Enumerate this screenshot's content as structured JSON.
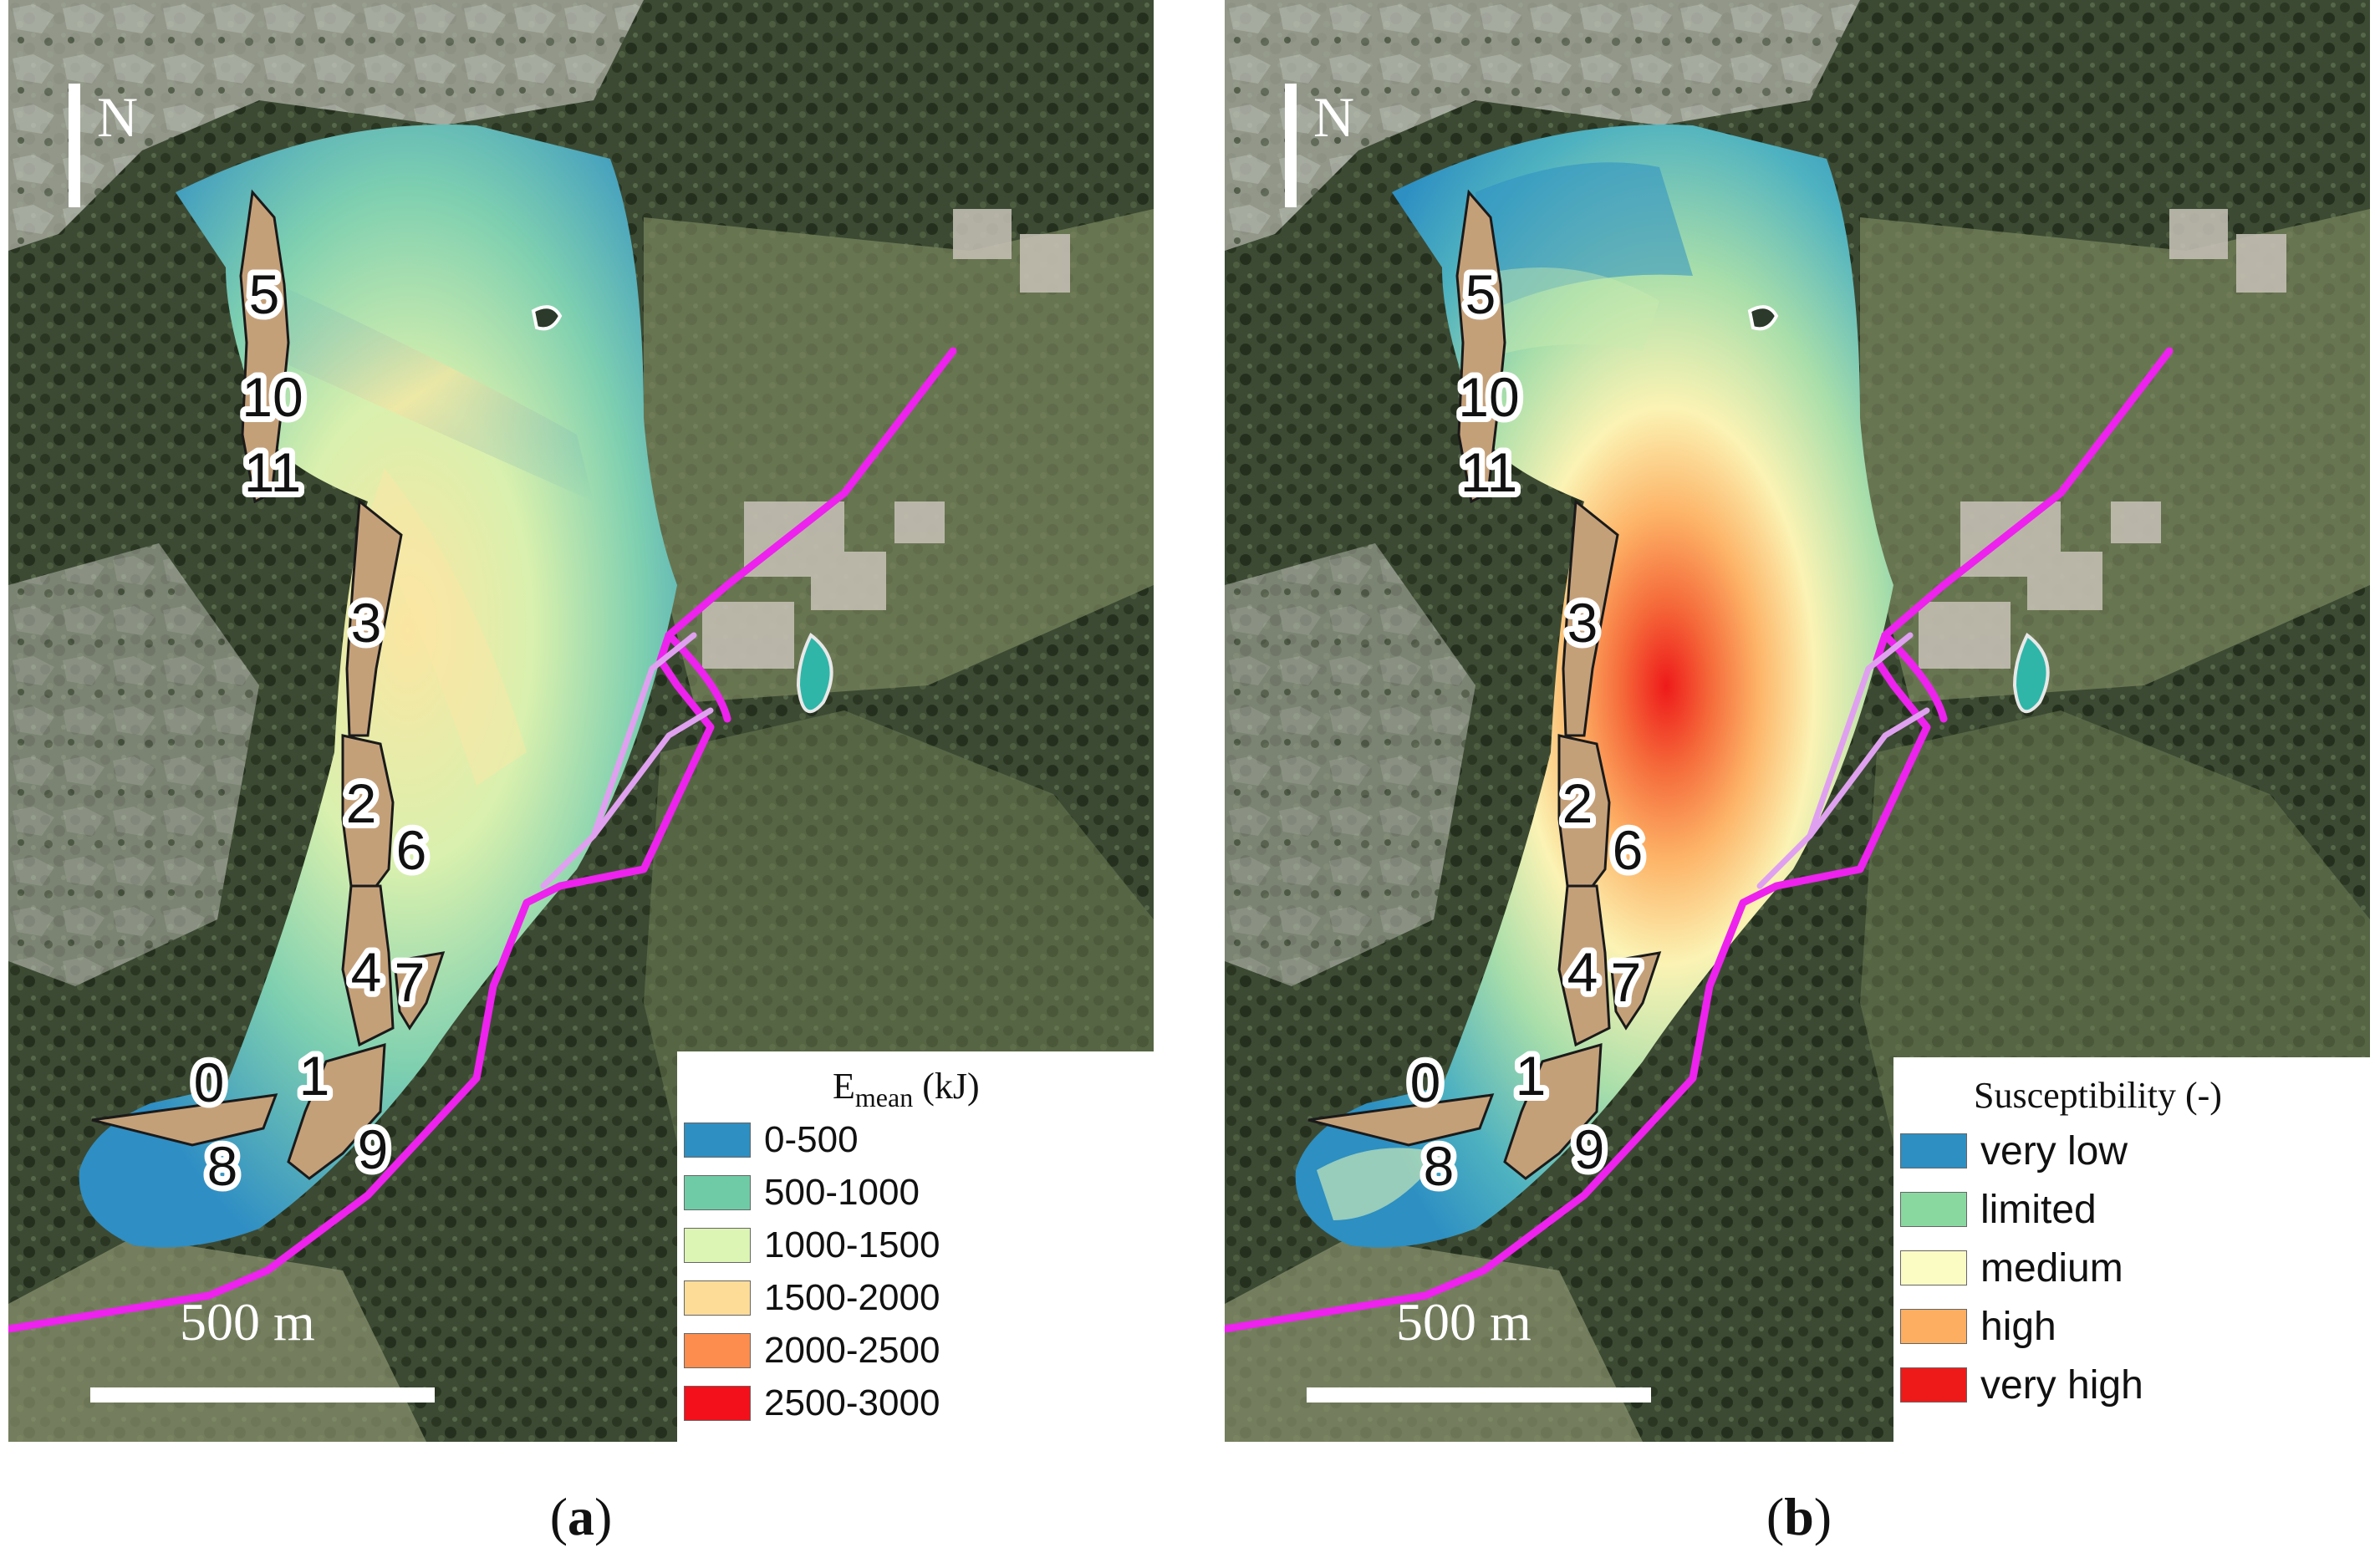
{
  "colors": {
    "path_magenta": "#ee22ee",
    "path_light": "#e0a0f0",
    "source_area_fill": "#c4a079",
    "source_area_stroke": "#1a1a1a"
  },
  "panels": [
    {
      "caption_open": "(",
      "caption_letter": "a",
      "caption_close": ")",
      "north": "N",
      "scale_label": "500 m",
      "legend": {
        "title_main": "E",
        "title_sub": "mean",
        "title_unit": " (kJ)",
        "items": [
          {
            "label": "0-500",
            "color": "#2d8fc2"
          },
          {
            "label": "500-1000",
            "color": "#6fcba6"
          },
          {
            "label": "1000-1500",
            "color": "#dcf5b4"
          },
          {
            "label": "1500-2000",
            "color": "#fddc98"
          },
          {
            "label": "2000-2500",
            "color": "#fc8d4e"
          },
          {
            "label": "2500-3000",
            "color": "#f4101a"
          }
        ]
      },
      "zone_labels": [
        "5",
        "10",
        "11",
        "3",
        "2",
        "6",
        "4",
        "7",
        "1",
        "0",
        "8",
        "9"
      ]
    },
    {
      "caption_open": "(",
      "caption_letter": "b",
      "caption_close": ")",
      "north": "N",
      "scale_label": "500 m",
      "legend": {
        "title_main": "Susceptibility (-)",
        "items": [
          {
            "label": "very low",
            "color": "#2d8fc2"
          },
          {
            "label": "limited",
            "color": "#88d8a0"
          },
          {
            "label": "medium",
            "color": "#fbfbc4"
          },
          {
            "label": "high",
            "color": "#fdae61"
          },
          {
            "label": "very high",
            "color": "#ee1a1a"
          }
        ]
      },
      "zone_labels": [
        "5",
        "10",
        "11",
        "3",
        "2",
        "6",
        "4",
        "7",
        "1",
        "0",
        "8",
        "9"
      ]
    }
  ]
}
